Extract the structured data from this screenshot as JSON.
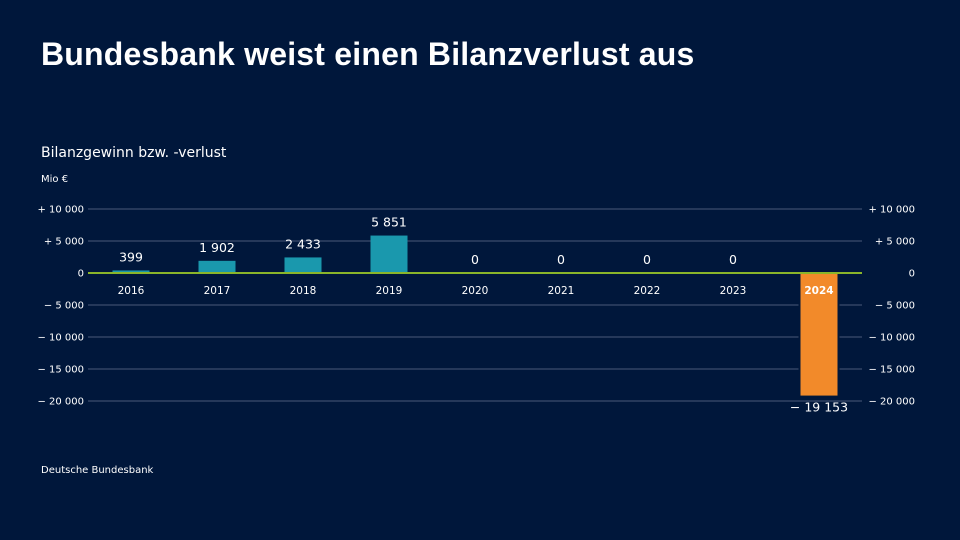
{
  "title": "Bundesbank  weist einen Bilanzverlust aus",
  "source": "Deutsche Bundesbank",
  "colors": {
    "background": "#00173b",
    "positive": "#1a98ad",
    "negative": "#f28a2a",
    "zero_line": "#8ab52a",
    "grid": "#4a5a78"
  },
  "chart_data": {
    "type": "bar",
    "title": "Bilanzgewinn bzw. -verlust",
    "ylabel": "Mio €",
    "categories": [
      "2016",
      "2017",
      "2018",
      "2019",
      "2020",
      "2021",
      "2022",
      "2023",
      "2024"
    ],
    "values": [
      399,
      1902,
      2433,
      5851,
      0,
      0,
      0,
      0,
      -19153
    ],
    "data_labels": [
      "399",
      "1 902",
      "2 433",
      "5 851",
      "0",
      "0",
      "0",
      "0",
      "− 19 153"
    ],
    "ylim": [
      -20000,
      10000
    ],
    "yticks": [
      10000,
      5000,
      0,
      -5000,
      -10000,
      -15000,
      -20000
    ],
    "ytick_labels": [
      "+ 10 000",
      "+   5 000",
      "0",
      "−   5 000",
      "− 10 000",
      "− 15 000",
      "− 20 000"
    ],
    "grid": true,
    "axes": "both-sides"
  }
}
